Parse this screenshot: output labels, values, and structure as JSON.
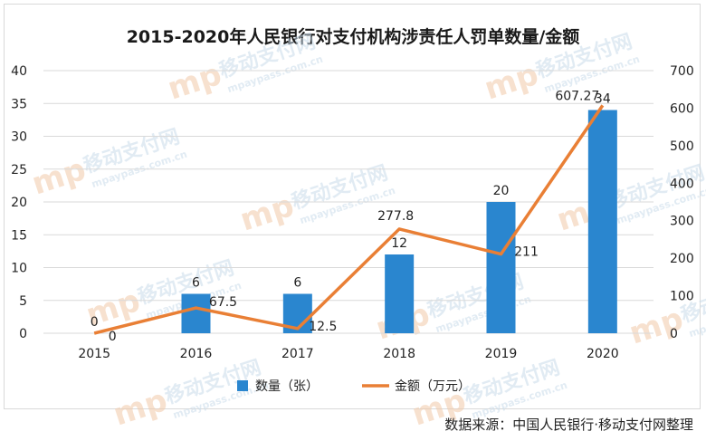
{
  "title": "2015-2020年人民银行对支付机构涉责任人罚单数量/金额",
  "source": "数据来源：中国人民银行·移动支付网整理",
  "watermark": {
    "text": "移动支付网",
    "sub": "mpaypass.com.cn",
    "logo": "mp"
  },
  "colors": {
    "bar": "#2a86cf",
    "line": "#e97f35",
    "grid": "#d9d9d9",
    "text": "#222222"
  },
  "chart_data": {
    "type": "bar+line",
    "categories": [
      "2015",
      "2016",
      "2017",
      "2018",
      "2019",
      "2020"
    ],
    "series": [
      {
        "name": "数量（张）",
        "type": "bar",
        "axis": "left",
        "values": [
          0,
          6,
          6,
          12,
          20,
          34
        ],
        "labels": [
          "0",
          "6",
          "6",
          "12",
          "20",
          "34"
        ]
      },
      {
        "name": "金额（万元）",
        "type": "line",
        "axis": "right",
        "values": [
          0,
          67.5,
          12.5,
          277.8,
          211,
          607.27
        ],
        "labels": [
          "0",
          "67.5",
          "12.5",
          "277.8",
          "211",
          "607.27"
        ]
      }
    ],
    "y_left": {
      "ticks": [
        0,
        5,
        10,
        15,
        20,
        25,
        30,
        35,
        40
      ],
      "ylim": [
        0,
        40
      ]
    },
    "y_right": {
      "ticks": [
        0,
        100,
        200,
        300,
        400,
        500,
        600,
        700
      ],
      "ylim": [
        0,
        700
      ]
    },
    "grid": true,
    "legend": "bottom"
  }
}
